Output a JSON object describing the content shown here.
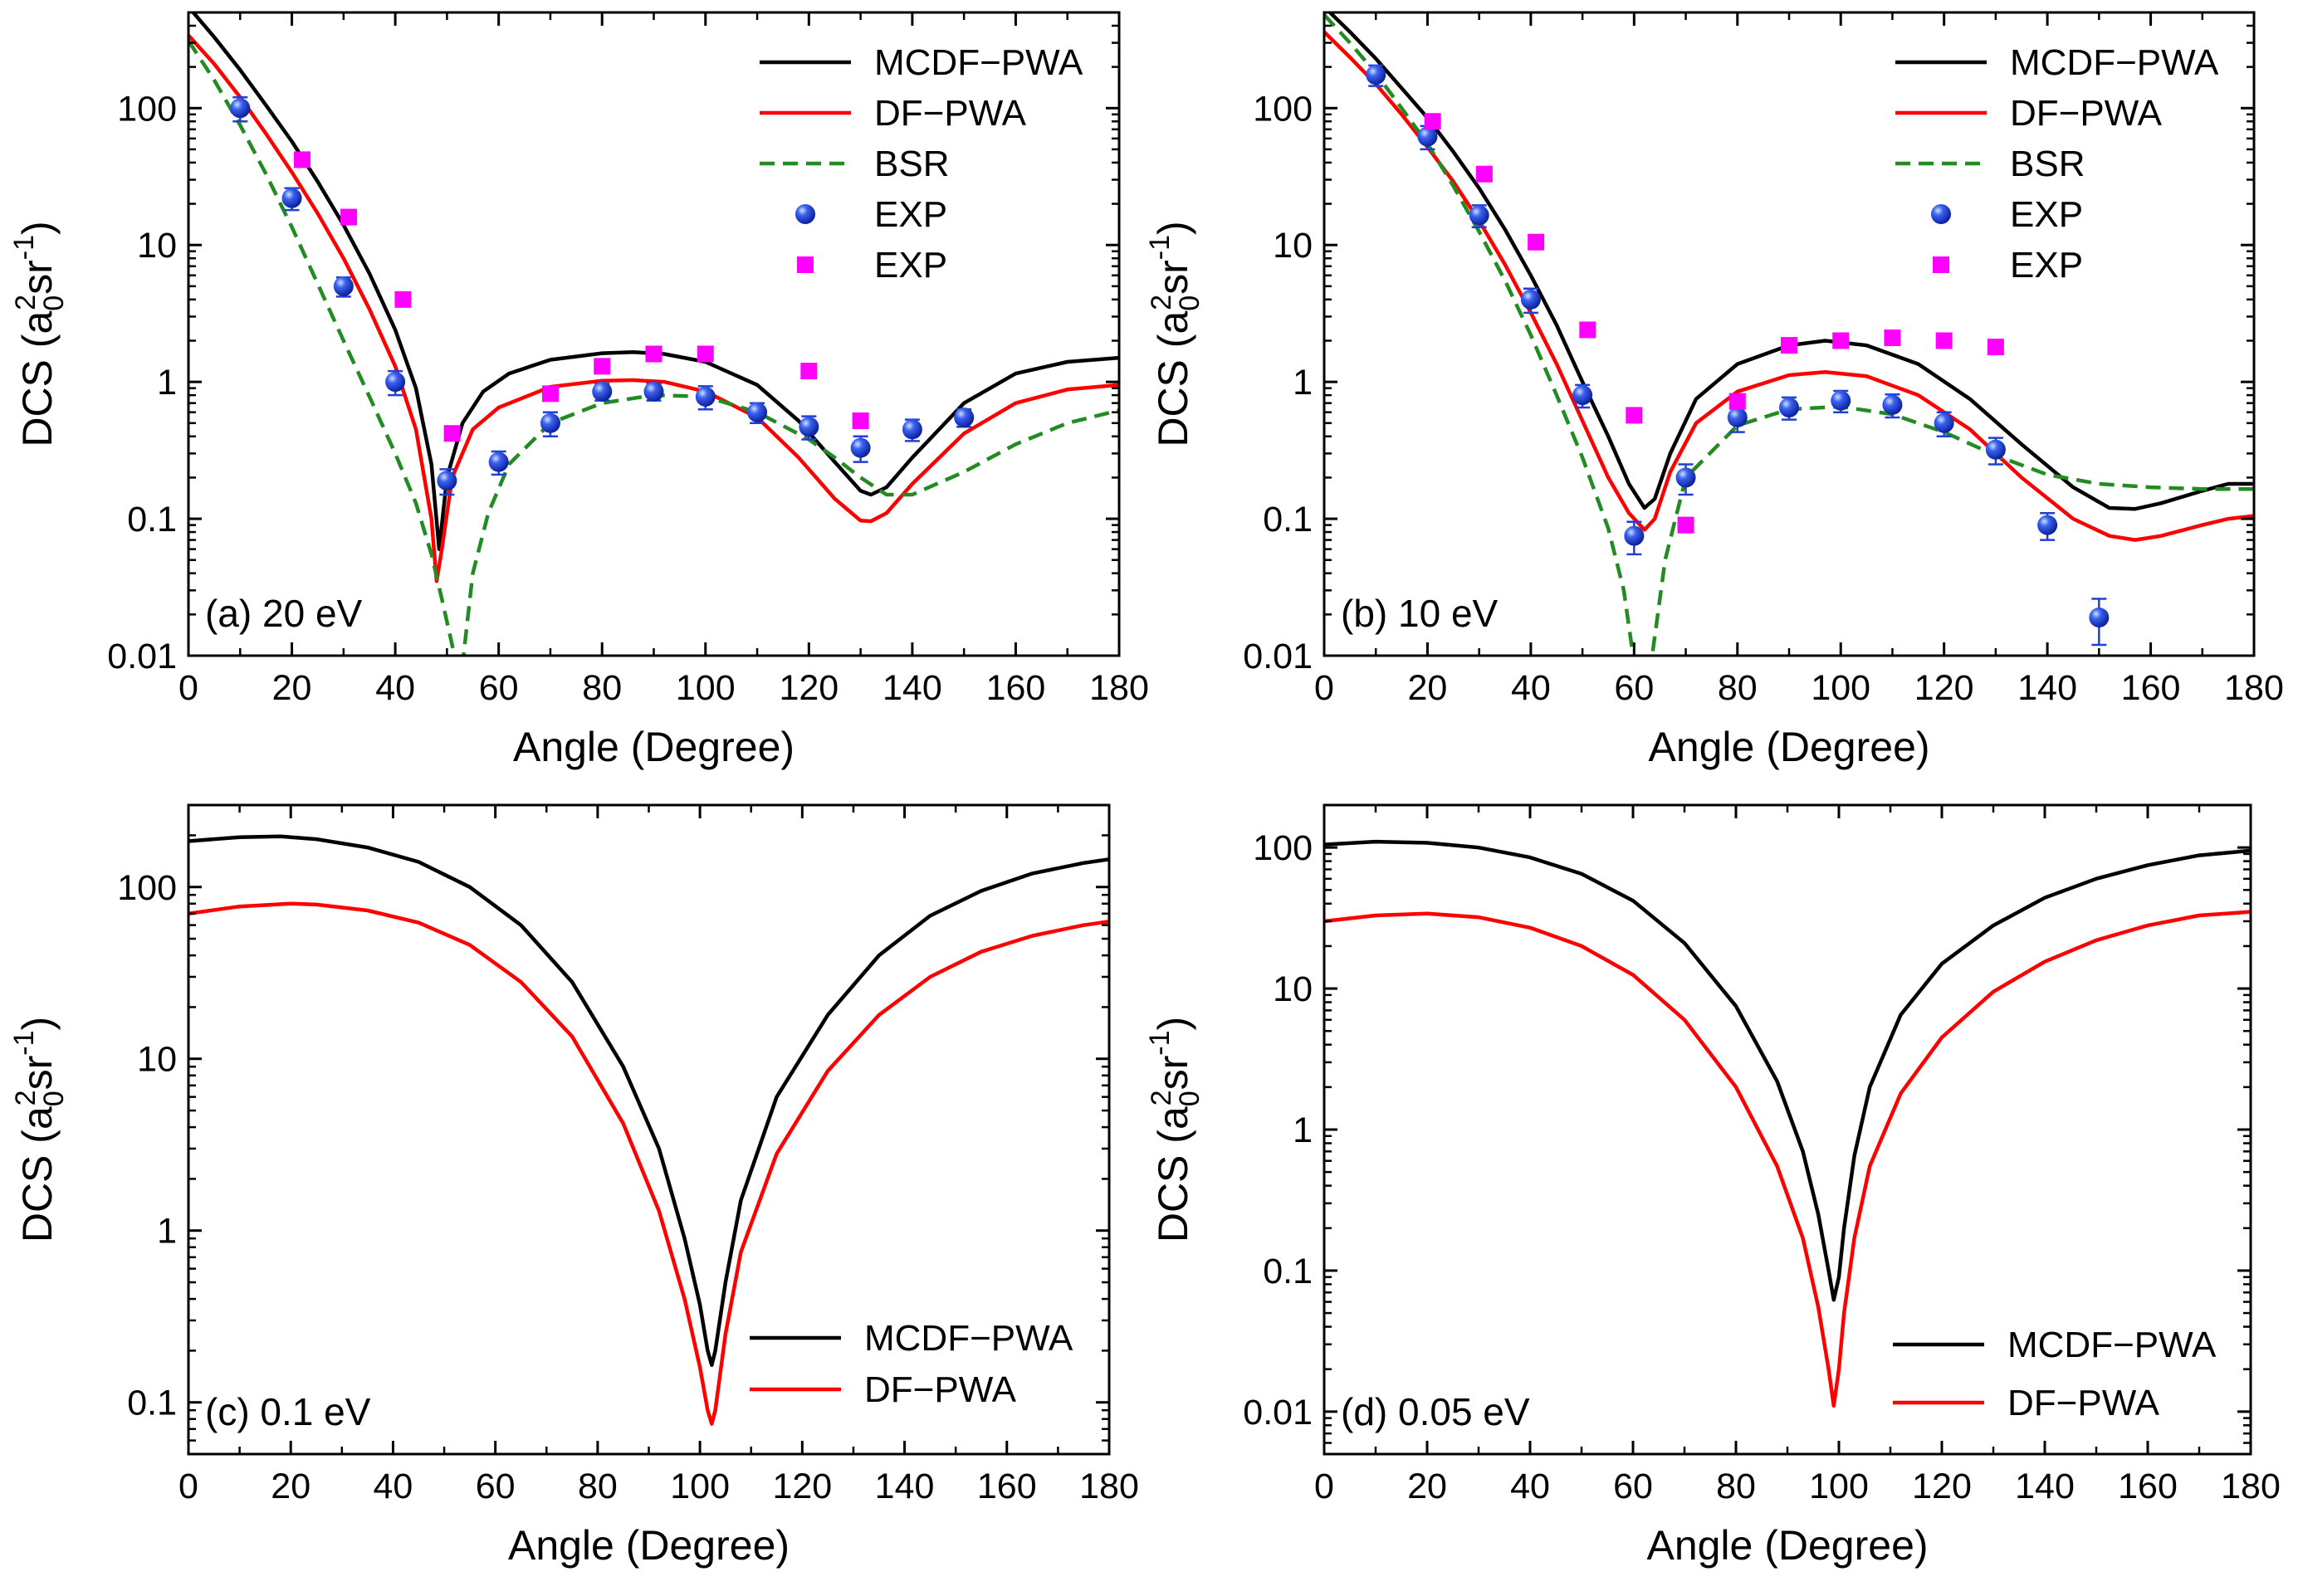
{
  "figure": {
    "x_label": "Angle (Degree)",
    "y_label": {
      "prefix": "DCS (a",
      "sub": "0",
      "sup2": "2",
      "mid": "sr",
      "sup": "-1",
      "suffix": ")"
    }
  },
  "chart_data": [
    {
      "type": "line",
      "panel_label": "(a) 20 eV",
      "xlabel": "Angle (Degree)",
      "ylabel": "DCS (a0^2 sr^-1)",
      "yscale": "log",
      "xlim": [
        0,
        180
      ],
      "ylim": [
        0.01,
        500
      ],
      "xticks": [
        0,
        20,
        40,
        60,
        80,
        100,
        120,
        140,
        160,
        180
      ],
      "yticks": [
        0.01,
        0.1,
        1,
        10,
        100
      ],
      "ytick_labels": [
        "0.01",
        "0.1",
        "1",
        "10",
        "100"
      ],
      "legend_position": "top-right",
      "series": [
        {
          "name": "MCDF−PWA",
          "style": "solid",
          "color": "#000000",
          "x": [
            0,
            5,
            10,
            15,
            20,
            25,
            30,
            35,
            40,
            44,
            47,
            48.5,
            50,
            53,
            57,
            62,
            70,
            80,
            86,
            92,
            100,
            110,
            118,
            125,
            130,
            132,
            135,
            140,
            150,
            160,
            170,
            180
          ],
          "y": [
            550,
            330,
            190,
            105,
            57,
            29,
            14,
            6.2,
            2.4,
            0.9,
            0.25,
            0.06,
            0.2,
            0.5,
            0.85,
            1.15,
            1.45,
            1.62,
            1.65,
            1.6,
            1.4,
            0.95,
            0.52,
            0.26,
            0.16,
            0.15,
            0.17,
            0.28,
            0.7,
            1.15,
            1.4,
            1.5
          ]
        },
        {
          "name": "DF−PWA",
          "style": "solid",
          "color": "#ff0000",
          "x": [
            0,
            5,
            10,
            15,
            20,
            25,
            30,
            35,
            40,
            44,
            47,
            48,
            49,
            51,
            55,
            60,
            70,
            80,
            86,
            92,
            100,
            110,
            118,
            125,
            130,
            132,
            135,
            140,
            150,
            160,
            170,
            180
          ],
          "y": [
            340,
            210,
            120,
            65,
            34,
            17,
            8,
            3.4,
            1.3,
            0.45,
            0.1,
            0.035,
            0.06,
            0.2,
            0.45,
            0.65,
            0.92,
            1.02,
            1.03,
            1.0,
            0.85,
            0.55,
            0.28,
            0.14,
            0.097,
            0.096,
            0.11,
            0.18,
            0.42,
            0.7,
            0.88,
            0.95
          ]
        },
        {
          "name": "BSR",
          "style": "dashed",
          "color": "#228b22",
          "x": [
            0,
            5,
            10,
            15,
            20,
            25,
            30,
            35,
            40,
            44,
            47,
            49,
            51,
            52,
            53.2,
            55,
            58,
            62,
            70,
            80,
            90,
            100,
            110,
            120,
            125,
            130,
            135,
            140,
            150,
            160,
            170,
            180
          ],
          "y": [
            310,
            160,
            75,
            33,
            13.5,
            5.2,
            2,
            0.78,
            0.3,
            0.13,
            0.055,
            0.026,
            0.012,
            0.0075,
            0.01,
            0.04,
            0.11,
            0.25,
            0.5,
            0.7,
            0.8,
            0.78,
            0.6,
            0.38,
            0.28,
            0.2,
            0.15,
            0.15,
            0.22,
            0.35,
            0.5,
            0.62
          ]
        },
        {
          "name": "EXP",
          "type": "scatter",
          "marker": "sphere",
          "color": "#1f3fd6",
          "x": [
            10,
            20,
            30,
            40,
            50,
            60,
            70,
            80,
            90,
            100,
            110,
            120,
            130,
            140,
            150
          ],
          "y": [
            100,
            22,
            5,
            1.0,
            0.19,
            0.26,
            0.5,
            0.85,
            0.85,
            0.78,
            0.6,
            0.47,
            0.33,
            0.45,
            0.55
          ],
          "err": [
            20,
            4,
            0.8,
            0.2,
            0.04,
            0.05,
            0.1,
            0.12,
            0.12,
            0.15,
            0.1,
            0.09,
            0.07,
            0.08,
            0.08
          ]
        },
        {
          "name": "EXP",
          "type": "scatter",
          "marker": "square",
          "color": "#ff00ff",
          "x": [
            22,
            31,
            41.5,
            51,
            70,
            80,
            90,
            100,
            120,
            130
          ],
          "y": [
            42,
            16,
            4,
            0.42,
            0.82,
            1.3,
            1.6,
            1.6,
            1.2,
            0.52
          ]
        }
      ]
    },
    {
      "type": "line",
      "panel_label": "(b) 10 eV",
      "xlabel": "Angle (Degree)",
      "ylabel": "DCS (a0^2 sr^-1)",
      "yscale": "log",
      "xlim": [
        0,
        180
      ],
      "ylim": [
        0.01,
        500
      ],
      "xticks": [
        0,
        20,
        40,
        60,
        80,
        100,
        120,
        140,
        160,
        180
      ],
      "yticks": [
        0.01,
        0.1,
        1,
        10,
        100
      ],
      "ytick_labels": [
        "0.01",
        "0.1",
        "1",
        "10",
        "100"
      ],
      "legend_position": "top-right",
      "series": [
        {
          "name": "MCDF−PWA",
          "style": "solid",
          "color": "#000000",
          "x": [
            0,
            5,
            10,
            15,
            20,
            25,
            30,
            35,
            40,
            45,
            50,
            55,
            59,
            62,
            64,
            67,
            72,
            80,
            90,
            97,
            105,
            115,
            125,
            135,
            145,
            152,
            157,
            162,
            170,
            175,
            180
          ],
          "y": [
            550,
            360,
            230,
            140,
            85,
            48,
            26,
            13,
            6,
            2.6,
            1.0,
            0.4,
            0.18,
            0.12,
            0.14,
            0.3,
            0.75,
            1.35,
            1.85,
            2.0,
            1.85,
            1.35,
            0.75,
            0.35,
            0.17,
            0.12,
            0.118,
            0.13,
            0.16,
            0.18,
            0.18
          ]
        },
        {
          "name": "DF−PWA",
          "style": "solid",
          "color": "#ff0000",
          "x": [
            0,
            5,
            10,
            15,
            20,
            25,
            30,
            35,
            40,
            45,
            50,
            55,
            59,
            62,
            64,
            67,
            72,
            80,
            90,
            97,
            105,
            115,
            125,
            135,
            145,
            152,
            157,
            162,
            170,
            175,
            180
          ],
          "y": [
            360,
            235,
            150,
            90,
            52,
            29,
            15,
            7.2,
            3.2,
            1.35,
            0.52,
            0.2,
            0.11,
            0.083,
            0.1,
            0.22,
            0.5,
            0.85,
            1.12,
            1.18,
            1.1,
            0.8,
            0.45,
            0.2,
            0.1,
            0.075,
            0.07,
            0.075,
            0.09,
            0.1,
            0.105
          ]
        },
        {
          "name": "BSR",
          "style": "dashed",
          "color": "#228b22",
          "x": [
            0,
            5,
            10,
            15,
            20,
            25,
            30,
            35,
            40,
            45,
            50,
            55,
            58,
            59.8,
            61,
            62,
            63.5,
            66,
            70,
            80,
            90,
            100,
            110,
            120,
            130,
            140,
            150,
            160,
            170,
            180
          ],
          "y": [
            480,
            300,
            180,
            100,
            55,
            27,
            12.5,
            5.5,
            2.2,
            0.8,
            0.28,
            0.085,
            0.03,
            0.01,
            0.004,
            0.005,
            0.01,
            0.05,
            0.2,
            0.48,
            0.63,
            0.66,
            0.58,
            0.43,
            0.29,
            0.21,
            0.18,
            0.17,
            0.165,
            0.165
          ]
        },
        {
          "name": "EXP",
          "type": "scatter",
          "marker": "sphere",
          "color": "#1f3fd6",
          "x": [
            10,
            20,
            30,
            40,
            50,
            60,
            70,
            80,
            90,
            100,
            110,
            120,
            130,
            140,
            150
          ],
          "y": [
            175,
            62,
            16.5,
            4.0,
            0.8,
            0.075,
            0.2,
            0.55,
            0.65,
            0.73,
            0.68,
            0.5,
            0.32,
            0.09,
            0.019
          ],
          "err": [
            30,
            12,
            3,
            0.8,
            0.15,
            0.02,
            0.05,
            0.12,
            0.12,
            0.13,
            0.13,
            0.1,
            0.07,
            0.02,
            0.007
          ]
        },
        {
          "name": "EXP",
          "type": "scatter",
          "marker": "square",
          "color": "#ff00ff",
          "x": [
            21,
            31,
            41,
            51,
            60,
            70,
            80,
            90,
            100,
            110,
            120,
            130
          ],
          "y": [
            80,
            33,
            10.5,
            2.4,
            0.57,
            0.09,
            0.72,
            1.85,
            2.0,
            2.1,
            2.0,
            1.8
          ]
        }
      ]
    },
    {
      "type": "line",
      "panel_label": "(c) 0.1 eV",
      "xlabel": "Angle (Degree)",
      "ylabel": "DCS (a0^2 sr^-1)",
      "yscale": "log",
      "xlim": [
        0,
        180
      ],
      "ylim": [
        0.05,
        300
      ],
      "xticks": [
        0,
        20,
        40,
        60,
        80,
        100,
        120,
        140,
        160,
        180
      ],
      "yticks": [
        0.1,
        1,
        10,
        100
      ],
      "ytick_labels": [
        "0.1",
        "1",
        "10",
        "100"
      ],
      "legend_position": "bottom-right",
      "series": [
        {
          "name": "MCDF−PWA",
          "style": "solid",
          "color": "#000000",
          "x": [
            0,
            10,
            18,
            25,
            35,
            45,
            55,
            65,
            75,
            85,
            92,
            97,
            100,
            101.5,
            102.3,
            103,
            105,
            108,
            115,
            125,
            135,
            145,
            155,
            165,
            175,
            180
          ],
          "y": [
            185,
            195,
            197,
            190,
            170,
            140,
            100,
            60,
            28,
            9,
            3,
            0.9,
            0.37,
            0.2,
            0.165,
            0.2,
            0.5,
            1.5,
            6,
            18,
            40,
            68,
            95,
            120,
            138,
            145
          ]
        },
        {
          "name": "DF−PWA",
          "style": "solid",
          "color": "#ff0000",
          "x": [
            0,
            10,
            20,
            25,
            35,
            45,
            55,
            65,
            75,
            85,
            92,
            97,
            100,
            101.5,
            102.3,
            103,
            105,
            108,
            115,
            125,
            135,
            145,
            155,
            165,
            175,
            180
          ],
          "y": [
            70,
            77,
            80,
            79,
            73,
            62,
            46,
            28,
            13.5,
            4.2,
            1.3,
            0.4,
            0.16,
            0.09,
            0.075,
            0.09,
            0.25,
            0.75,
            2.8,
            8.5,
            18,
            30,
            42,
            52,
            60,
            63
          ]
        }
      ]
    },
    {
      "type": "line",
      "panel_label": "(d) 0.05 eV",
      "xlabel": "Angle (Degree)",
      "ylabel": "DCS (a0^2 sr^-1)",
      "yscale": "log",
      "xlim": [
        0,
        180
      ],
      "ylim": [
        0.005,
        200
      ],
      "xticks": [
        0,
        20,
        40,
        60,
        80,
        100,
        120,
        140,
        160,
        180
      ],
      "yticks": [
        0.01,
        0.1,
        1,
        10,
        100
      ],
      "ytick_labels": [
        "0.01",
        "0.1",
        "1",
        "10",
        "100"
      ],
      "legend_position": "bottom-right",
      "series": [
        {
          "name": "MCDF−PWA",
          "style": "solid",
          "color": "#000000",
          "x": [
            0,
            10,
            20,
            30,
            40,
            50,
            60,
            70,
            80,
            88,
            93,
            96,
            98,
            99,
            100,
            101,
            103,
            106,
            112,
            120,
            130,
            140,
            150,
            160,
            170,
            180
          ],
          "y": [
            105,
            110,
            108,
            100,
            85,
            65,
            42,
            21,
            7.5,
            2.2,
            0.7,
            0.25,
            0.1,
            0.062,
            0.09,
            0.2,
            0.65,
            2,
            6.5,
            15,
            28,
            44,
            60,
            75,
            88,
            95
          ]
        },
        {
          "name": "DF−PWA",
          "style": "solid",
          "color": "#ff0000",
          "x": [
            0,
            10,
            20,
            30,
            40,
            50,
            60,
            70,
            80,
            88,
            93,
            96,
            98,
            99,
            100,
            101,
            103,
            106,
            112,
            120,
            130,
            140,
            150,
            160,
            170,
            180
          ],
          "y": [
            30,
            33,
            34,
            32,
            27,
            20,
            12.5,
            6,
            2,
            0.55,
            0.17,
            0.055,
            0.02,
            0.011,
            0.02,
            0.05,
            0.17,
            0.55,
            1.8,
            4.5,
            9.5,
            15.5,
            22,
            28,
            33,
            35
          ]
        }
      ]
    }
  ]
}
